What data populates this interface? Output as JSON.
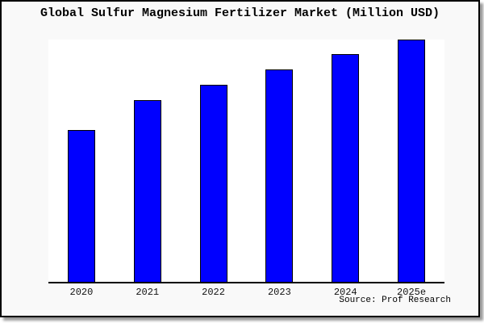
{
  "page": {
    "title": "Global Sulfur Magnesium Fertilizer Market (Million USD)",
    "source_credit": "Source: Prof Research"
  },
  "colors": {
    "bar_fill": "#0000ff",
    "bar_border": "#000000",
    "card_background": "#f9f9f9",
    "plot_background": "#ffffff",
    "axis_line": "#000000",
    "text": "#000000"
  },
  "chart_data": {
    "type": "bar",
    "title": "Global Sulfur Magnesium Fertilizer Market (Million USD)",
    "categories": [
      "2020",
      "2021",
      "2022",
      "2023",
      "2024",
      "2025e"
    ],
    "values": [
      62.5,
      75.0,
      81.3,
      87.5,
      93.8,
      100.0
    ],
    "values_note": "relative scale estimated from bar heights; tallest bar (2025e) = 100",
    "xlabel": "",
    "ylabel": "",
    "ylim": [
      0,
      100.3
    ],
    "y_axis_visible": false,
    "gridlines": false,
    "legend": false,
    "source": "Source: Prof Research"
  }
}
